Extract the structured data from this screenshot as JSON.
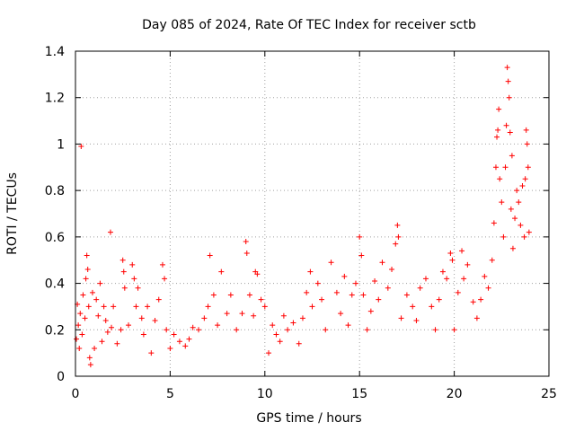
{
  "chart_data": {
    "type": "scatter",
    "title": "Day 085 of 2024, Rate Of TEC Index for receiver sctb",
    "xlabel": "GPS time / hours",
    "ylabel": "ROTI / TECUs",
    "xlim": [
      0,
      25
    ],
    "ylim": [
      0,
      1.4
    ],
    "xticks": [
      0,
      5,
      10,
      15,
      20,
      25
    ],
    "xtick_labels": [
      "0",
      "5",
      "10",
      "15",
      "20",
      "25"
    ],
    "yticks": [
      0,
      0.2,
      0.4,
      0.6,
      0.8,
      1,
      1.2,
      1.4
    ],
    "ytick_labels": [
      "0",
      "0.2",
      "0.4",
      "0.6",
      "0.8",
      "1",
      "1.2",
      "1.4"
    ],
    "grid": true,
    "marker": "+",
    "color": "#ff0000",
    "series": [
      {
        "name": "ROTI",
        "points": [
          [
            0.05,
            0.16
          ],
          [
            0.1,
            0.31
          ],
          [
            0.15,
            0.22
          ],
          [
            0.2,
            0.12
          ],
          [
            0.25,
            0.27
          ],
          [
            0.3,
            0.99
          ],
          [
            0.35,
            0.18
          ],
          [
            0.4,
            0.35
          ],
          [
            0.5,
            0.25
          ],
          [
            0.55,
            0.42
          ],
          [
            0.6,
            0.52
          ],
          [
            0.65,
            0.46
          ],
          [
            0.7,
            0.3
          ],
          [
            0.75,
            0.08
          ],
          [
            0.8,
            0.05
          ],
          [
            0.9,
            0.36
          ],
          [
            1.0,
            0.12
          ],
          [
            1.1,
            0.33
          ],
          [
            1.2,
            0.26
          ],
          [
            1.3,
            0.4
          ],
          [
            1.4,
            0.15
          ],
          [
            1.5,
            0.3
          ],
          [
            1.6,
            0.24
          ],
          [
            1.7,
            0.19
          ],
          [
            1.85,
            0.62
          ],
          [
            1.9,
            0.21
          ],
          [
            2.0,
            0.3
          ],
          [
            2.2,
            0.14
          ],
          [
            2.4,
            0.2
          ],
          [
            2.5,
            0.5
          ],
          [
            2.55,
            0.45
          ],
          [
            2.6,
            0.38
          ],
          [
            2.8,
            0.22
          ],
          [
            3.0,
            0.48
          ],
          [
            3.1,
            0.42
          ],
          [
            3.2,
            0.3
          ],
          [
            3.3,
            0.38
          ],
          [
            3.5,
            0.25
          ],
          [
            3.6,
            0.18
          ],
          [
            3.8,
            0.3
          ],
          [
            4.0,
            0.1
          ],
          [
            4.2,
            0.24
          ],
          [
            4.4,
            0.33
          ],
          [
            4.6,
            0.48
          ],
          [
            4.7,
            0.42
          ],
          [
            4.8,
            0.2
          ],
          [
            5.0,
            0.12
          ],
          [
            5.2,
            0.18
          ],
          [
            5.5,
            0.15
          ],
          [
            5.8,
            0.13
          ],
          [
            6.0,
            0.16
          ],
          [
            6.2,
            0.21
          ],
          [
            6.5,
            0.2
          ],
          [
            6.8,
            0.25
          ],
          [
            7.0,
            0.3
          ],
          [
            7.1,
            0.52
          ],
          [
            7.3,
            0.35
          ],
          [
            7.5,
            0.22
          ],
          [
            7.7,
            0.45
          ],
          [
            8.0,
            0.27
          ],
          [
            8.2,
            0.35
          ],
          [
            8.5,
            0.2
          ],
          [
            8.8,
            0.27
          ],
          [
            9.0,
            0.58
          ],
          [
            9.05,
            0.53
          ],
          [
            9.2,
            0.35
          ],
          [
            9.4,
            0.26
          ],
          [
            9.5,
            0.45
          ],
          [
            9.6,
            0.44
          ],
          [
            9.8,
            0.33
          ],
          [
            10.0,
            0.3
          ],
          [
            10.2,
            0.1
          ],
          [
            10.4,
            0.22
          ],
          [
            10.6,
            0.18
          ],
          [
            10.8,
            0.15
          ],
          [
            11.0,
            0.26
          ],
          [
            11.2,
            0.2
          ],
          [
            11.5,
            0.23
          ],
          [
            11.8,
            0.14
          ],
          [
            12.0,
            0.25
          ],
          [
            12.2,
            0.36
          ],
          [
            12.4,
            0.45
          ],
          [
            12.5,
            0.3
          ],
          [
            12.8,
            0.4
          ],
          [
            13.0,
            0.33
          ],
          [
            13.2,
            0.2
          ],
          [
            13.5,
            0.49
          ],
          [
            13.8,
            0.36
          ],
          [
            14.0,
            0.27
          ],
          [
            14.2,
            0.43
          ],
          [
            14.4,
            0.22
          ],
          [
            14.6,
            0.35
          ],
          [
            14.8,
            0.4
          ],
          [
            15.0,
            0.6
          ],
          [
            15.1,
            0.52
          ],
          [
            15.2,
            0.35
          ],
          [
            15.4,
            0.2
          ],
          [
            15.6,
            0.28
          ],
          [
            15.8,
            0.41
          ],
          [
            16.0,
            0.33
          ],
          [
            16.2,
            0.49
          ],
          [
            16.5,
            0.38
          ],
          [
            16.7,
            0.46
          ],
          [
            16.9,
            0.57
          ],
          [
            17.0,
            0.65
          ],
          [
            17.05,
            0.6
          ],
          [
            17.2,
            0.25
          ],
          [
            17.5,
            0.35
          ],
          [
            17.8,
            0.3
          ],
          [
            18.0,
            0.24
          ],
          [
            18.2,
            0.38
          ],
          [
            18.5,
            0.42
          ],
          [
            18.8,
            0.3
          ],
          [
            19.0,
            0.2
          ],
          [
            19.2,
            0.33
          ],
          [
            19.4,
            0.45
          ],
          [
            19.6,
            0.42
          ],
          [
            19.8,
            0.53
          ],
          [
            19.9,
            0.5
          ],
          [
            20.0,
            0.2
          ],
          [
            20.2,
            0.36
          ],
          [
            20.4,
            0.54
          ],
          [
            20.5,
            0.42
          ],
          [
            20.7,
            0.48
          ],
          [
            21.0,
            0.32
          ],
          [
            21.2,
            0.25
          ],
          [
            21.4,
            0.33
          ],
          [
            21.6,
            0.43
          ],
          [
            21.8,
            0.38
          ],
          [
            22.0,
            0.5
          ],
          [
            22.1,
            0.66
          ],
          [
            22.2,
            0.9
          ],
          [
            22.25,
            1.03
          ],
          [
            22.3,
            1.06
          ],
          [
            22.35,
            1.15
          ],
          [
            22.4,
            0.85
          ],
          [
            22.5,
            0.75
          ],
          [
            22.6,
            0.6
          ],
          [
            22.7,
            0.9
          ],
          [
            22.75,
            1.08
          ],
          [
            22.8,
            1.33
          ],
          [
            22.85,
            1.27
          ],
          [
            22.9,
            1.2
          ],
          [
            22.95,
            1.05
          ],
          [
            23.0,
            0.72
          ],
          [
            23.05,
            0.95
          ],
          [
            23.1,
            0.55
          ],
          [
            23.2,
            0.68
          ],
          [
            23.3,
            0.8
          ],
          [
            23.4,
            0.75
          ],
          [
            23.5,
            0.65
          ],
          [
            23.6,
            0.82
          ],
          [
            23.7,
            0.6
          ],
          [
            23.75,
            0.85
          ],
          [
            23.8,
            1.06
          ],
          [
            23.85,
            1.0
          ],
          [
            23.9,
            0.9
          ],
          [
            23.95,
            0.62
          ]
        ]
      }
    ]
  }
}
